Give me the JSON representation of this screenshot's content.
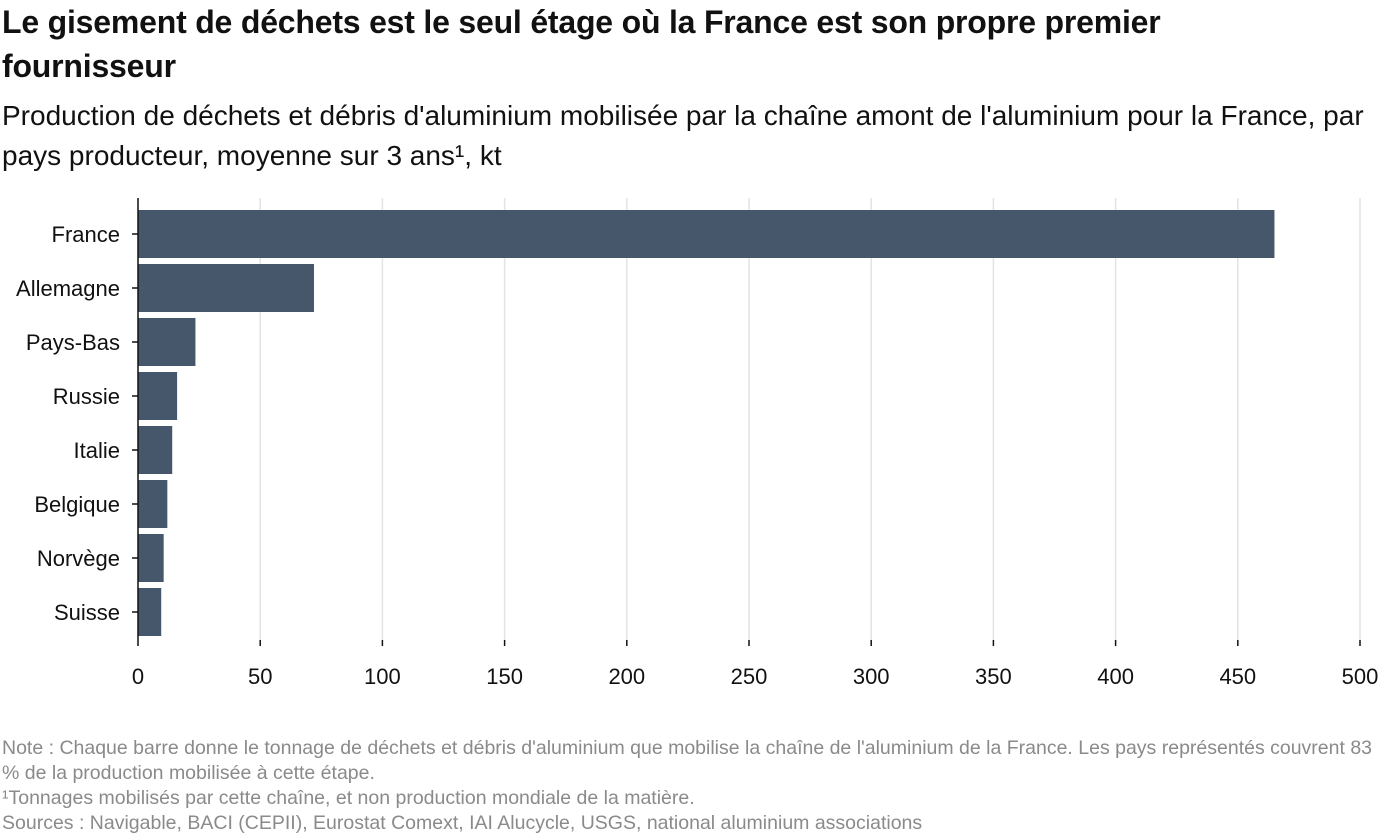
{
  "header": {
    "title": "Le gisement de déchets est le seul étage où la France est son propre premier fournisseur",
    "subtitle_main": "Production de déchets et débris d'aluminium mobilisée par la chaîne amont de l'aluminium pour la France, par pays producteur, moyenne sur 3 ans¹",
    "subtitle_unit": ", kt"
  },
  "footer": {
    "note": "Note : Chaque barre donne le tonnage de déchets et débris d'aluminium que mobilise la chaîne de l'aluminium de la France. Les pays représentés couvrent 83 % de la production mobilisée à cette étape.",
    "footnote": "¹Tonnages mobilisés par cette chaîne, et non production mondiale de la matière.",
    "sources": "Sources : Navigable, BACI (CEPII), Eurostat Comext, IAI Alucycle, USGS, national aluminium associations"
  },
  "chart_data": {
    "type": "bar",
    "orientation": "horizontal",
    "categories": [
      "France",
      "Allemagne",
      "Pays-Bas",
      "Russie",
      "Italie",
      "Belgique",
      "Norvège",
      "Suisse"
    ],
    "values": [
      465,
      72,
      23.5,
      16,
      14,
      12,
      10.5,
      9.5
    ],
    "xlim": [
      0,
      500
    ],
    "xticks": [
      0,
      50,
      100,
      150,
      200,
      250,
      300,
      350,
      400,
      450,
      500
    ],
    "grid": "vertical",
    "bar_color": "#46566b",
    "grid_color": "#e3e3e3",
    "axis_color": "#111111"
  }
}
